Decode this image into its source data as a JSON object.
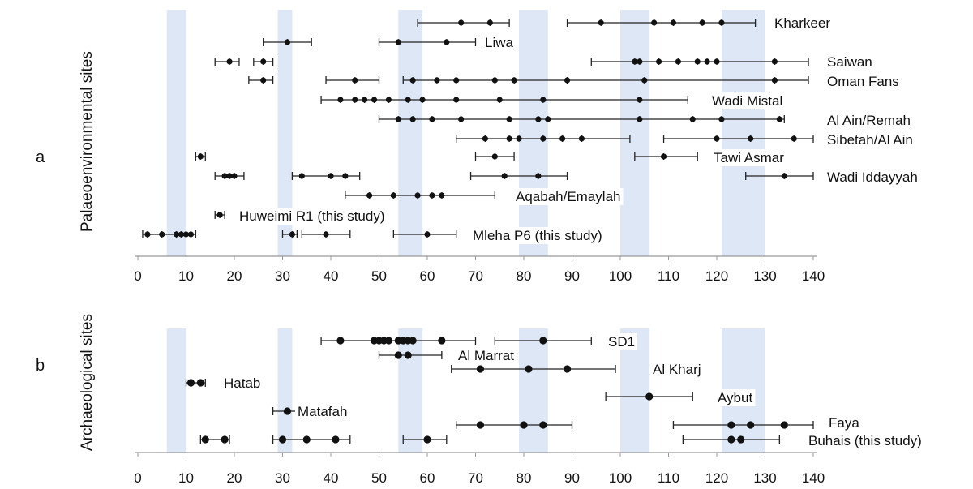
{
  "chart_data": [
    {
      "panel": "a",
      "type": "scatter",
      "ylabel": "Palaeoenvironmental sites",
      "xlim": [
        0,
        140
      ],
      "xticks": [
        0,
        10,
        20,
        30,
        40,
        50,
        60,
        70,
        80,
        90,
        100,
        110,
        120,
        130,
        140
      ],
      "shaded_bands": [
        [
          6,
          10
        ],
        [
          29,
          32
        ],
        [
          54,
          59
        ],
        [
          79,
          85
        ],
        [
          100,
          106
        ],
        [
          121,
          130
        ]
      ],
      "series": [
        {
          "name": "Kharkeer",
          "ages": [
            67,
            73,
            96,
            107,
            111,
            117,
            121
          ],
          "ranges": [
            [
              58,
              77
            ],
            [
              89,
              128
            ]
          ]
        },
        {
          "name": "Liwa",
          "ages": [
            31,
            54,
            64
          ],
          "ranges": [
            [
              26,
              36
            ],
            [
              50,
              70
            ]
          ]
        },
        {
          "name": "Saiwan",
          "ages": [
            19,
            26,
            103,
            104,
            108,
            112,
            116,
            118,
            120,
            132
          ],
          "ranges": [
            [
              16,
              21
            ],
            [
              24,
              28
            ],
            [
              94,
              139
            ]
          ]
        },
        {
          "name": "Oman Fans",
          "ages": [
            26,
            45,
            57,
            62,
            66,
            74,
            78,
            89,
            105,
            132
          ],
          "ranges": [
            [
              23,
              28
            ],
            [
              39,
              50
            ],
            [
              55,
              139
            ]
          ]
        },
        {
          "name": "Wadi Mistal",
          "ages": [
            42,
            45,
            47,
            49,
            52,
            56,
            59,
            66,
            75,
            84,
            104
          ],
          "ranges": [
            [
              38,
              114
            ]
          ]
        },
        {
          "name": "Al Ain/Remah",
          "ages": [
            54,
            57,
            61,
            67,
            77,
            83,
            85,
            104,
            115,
            121,
            133
          ],
          "ranges": [
            [
              50,
              134
            ]
          ]
        },
        {
          "name": "Sibetah/Al Ain",
          "ages": [
            72,
            77,
            79,
            84,
            88,
            92,
            120,
            127,
            136
          ],
          "ranges": [
            [
              66,
              102
            ],
            [
              109,
              140
            ]
          ]
        },
        {
          "name": "Tawi Asmar",
          "ages": [
            13,
            74,
            109
          ],
          "ranges": [
            [
              12,
              14
            ],
            [
              70,
              78
            ],
            [
              103,
              116
            ]
          ]
        },
        {
          "name": "Wadi Iddayyah",
          "ages": [
            18,
            19,
            20,
            34,
            40,
            43,
            76,
            83,
            134
          ],
          "ranges": [
            [
              16,
              22
            ],
            [
              32,
              46
            ],
            [
              69,
              89
            ],
            [
              126,
              140
            ]
          ]
        },
        {
          "name": "Aqabah/Emaylah",
          "ages": [
            48,
            53,
            58,
            61,
            63
          ],
          "ranges": [
            [
              43,
              74
            ]
          ]
        },
        {
          "name": "Huweimi R1 (this study)",
          "ages": [
            17
          ],
          "ranges": [
            [
              16,
              18
            ]
          ]
        },
        {
          "name": "Mleha P6 (this study)",
          "ages": [
            2,
            5,
            8,
            9,
            10,
            11,
            32,
            39,
            60
          ],
          "ranges": [
            [
              1,
              12
            ],
            [
              30,
              33
            ],
            [
              34,
              44
            ],
            [
              53,
              66
            ]
          ]
        }
      ]
    },
    {
      "panel": "b",
      "type": "scatter",
      "ylabel": "Archaeological sites",
      "xlim": [
        0,
        140
      ],
      "xticks": [
        0,
        10,
        20,
        30,
        40,
        50,
        60,
        70,
        80,
        90,
        100,
        110,
        120,
        130,
        140
      ],
      "shaded_bands": [
        [
          6,
          10
        ],
        [
          29,
          32
        ],
        [
          54,
          59
        ],
        [
          79,
          85
        ],
        [
          100,
          106
        ],
        [
          121,
          130
        ]
      ],
      "series": [
        {
          "name": "SD1",
          "ages": [
            42,
            49,
            50,
            51,
            52,
            54,
            55,
            56,
            57,
            63,
            84
          ],
          "ranges": [
            [
              38,
              70
            ],
            [
              74,
              94
            ]
          ]
        },
        {
          "name": "Al Marrat",
          "ages": [
            54,
            56
          ],
          "ranges": [
            [
              50,
              63
            ]
          ]
        },
        {
          "name": "Al Kharj",
          "ages": [
            71,
            81,
            89
          ],
          "ranges": [
            [
              65,
              99
            ]
          ]
        },
        {
          "name": "Hatab",
          "ages": [
            11,
            13
          ],
          "ranges": [
            [
              10,
              14
            ]
          ]
        },
        {
          "name": "Aybut",
          "ages": [
            106
          ],
          "ranges": [
            [
              97,
              115
            ]
          ]
        },
        {
          "name": "Matafah",
          "ages": [
            31
          ],
          "ranges": [
            [
              28,
              34
            ]
          ]
        },
        {
          "name": "Faya",
          "ages": [
            71,
            80,
            84,
            123,
            127,
            134
          ],
          "ranges": [
            [
              66,
              90
            ],
            [
              111,
              140
            ]
          ]
        },
        {
          "name": "Buhais (this study)",
          "ages": [
            14,
            18,
            30,
            35,
            41,
            60,
            123,
            125
          ],
          "ranges": [
            [
              13,
              19
            ],
            [
              28,
              44
            ],
            [
              55,
              64
            ],
            [
              113,
              133
            ]
          ]
        }
      ]
    }
  ]
}
